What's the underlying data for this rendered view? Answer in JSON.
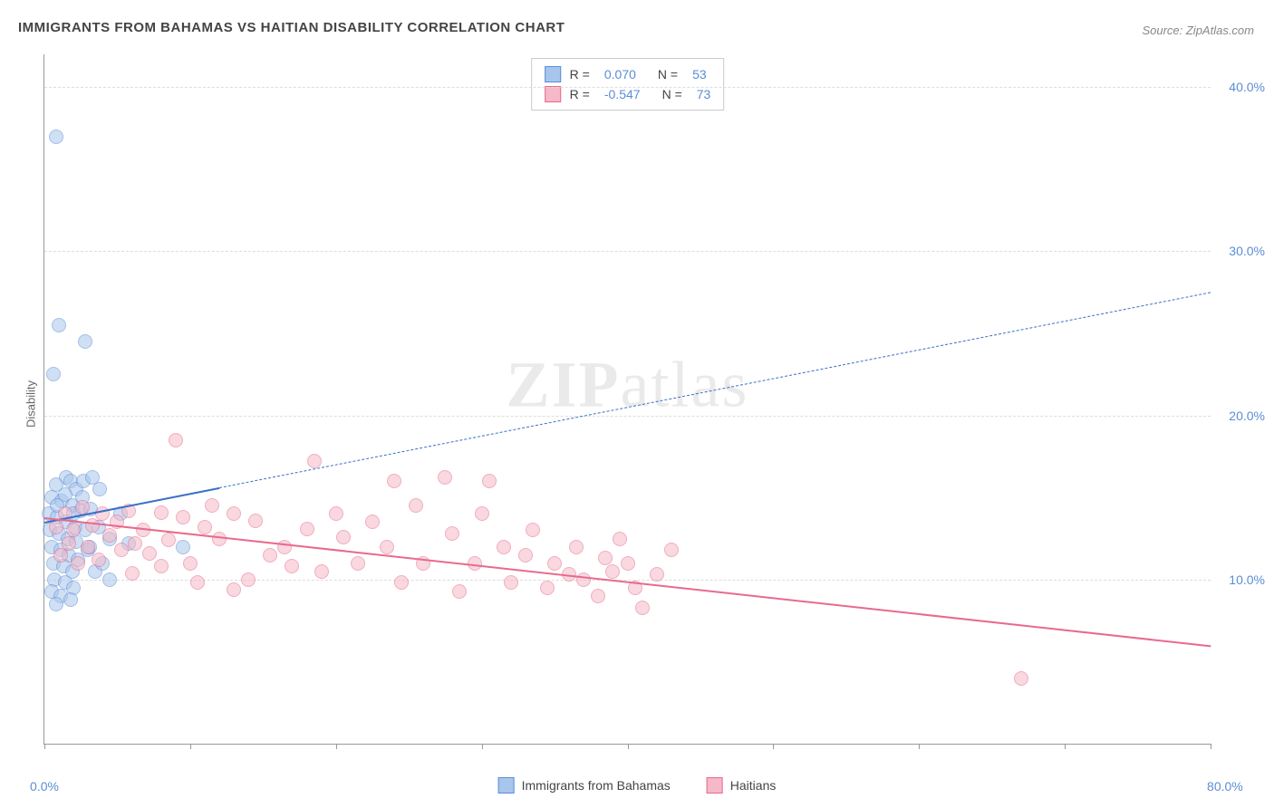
{
  "title": "IMMIGRANTS FROM BAHAMAS VS HAITIAN DISABILITY CORRELATION CHART",
  "source_label": "Source: ",
  "source_value": "ZipAtlas.com",
  "ylabel": "Disability",
  "watermark_bold": "ZIP",
  "watermark_light": "atlas",
  "chart": {
    "type": "scatter",
    "xlim": [
      0,
      80
    ],
    "ylim": [
      0,
      42
    ],
    "xtick_positions": [
      0,
      10,
      20,
      30,
      40,
      50,
      60,
      70,
      80
    ],
    "xtick_labels": {
      "0": "0.0%",
      "80": "80.0%"
    },
    "ytick_positions": [
      10,
      20,
      30,
      40
    ],
    "ytick_labels": [
      "10.0%",
      "20.0%",
      "30.0%",
      "40.0%"
    ],
    "grid_color": "#dddddd",
    "background_color": "#ffffff",
    "axis_color": "#999999",
    "marker_radius": 8,
    "marker_opacity": 0.55,
    "marker_border_width": 1.2
  },
  "series": [
    {
      "id": "bahamas",
      "label": "Immigrants from Bahamas",
      "color_fill": "#a8c6ec",
      "color_stroke": "#5b8dd6",
      "R": "0.070",
      "N": "53",
      "trend": {
        "x1": 0,
        "y1": 13.5,
        "x2": 80,
        "y2": 27.5,
        "solid_until_x": 12,
        "color": "#3b6fc7",
        "width": 2.5,
        "dash": "6,5"
      },
      "points": [
        [
          0.8,
          37.0
        ],
        [
          1.0,
          25.5
        ],
        [
          2.8,
          24.5
        ],
        [
          0.6,
          22.5
        ],
        [
          1.5,
          16.2
        ],
        [
          1.8,
          16.0
        ],
        [
          0.8,
          15.8
        ],
        [
          2.2,
          15.5
        ],
        [
          2.7,
          16.0
        ],
        [
          3.3,
          16.2
        ],
        [
          3.8,
          15.5
        ],
        [
          0.5,
          15.0
        ],
        [
          1.2,
          14.8
        ],
        [
          1.9,
          14.5
        ],
        [
          2.5,
          14.2
        ],
        [
          0.3,
          14.0
        ],
        [
          0.9,
          13.8
        ],
        [
          1.5,
          13.5
        ],
        [
          2.1,
          13.2
        ],
        [
          2.8,
          13.0
        ],
        [
          3.2,
          14.3
        ],
        [
          3.7,
          13.2
        ],
        [
          0.4,
          13.0
        ],
        [
          1.0,
          12.8
        ],
        [
          1.6,
          12.5
        ],
        [
          2.2,
          12.3
        ],
        [
          0.5,
          12.0
        ],
        [
          1.1,
          11.8
        ],
        [
          1.7,
          11.5
        ],
        [
          2.3,
          11.2
        ],
        [
          0.6,
          11.0
        ],
        [
          1.3,
          10.8
        ],
        [
          1.9,
          10.5
        ],
        [
          4.5,
          12.5
        ],
        [
          5.2,
          14.0
        ],
        [
          5.8,
          12.2
        ],
        [
          0.7,
          10.0
        ],
        [
          1.4,
          9.8
        ],
        [
          2.0,
          9.5
        ],
        [
          9.5,
          12.0
        ],
        [
          0.5,
          9.3
        ],
        [
          1.1,
          9.0
        ],
        [
          1.8,
          8.8
        ],
        [
          0.8,
          8.5
        ],
        [
          3.0,
          11.8
        ],
        [
          3.5,
          10.5
        ],
        [
          4.0,
          11.0
        ],
        [
          4.5,
          10.0
        ],
        [
          0.9,
          14.5
        ],
        [
          1.4,
          15.2
        ],
        [
          2.0,
          14.0
        ],
        [
          2.6,
          15.0
        ],
        [
          3.1,
          12.0
        ]
      ]
    },
    {
      "id": "haitians",
      "label": "Haitians",
      "color_fill": "#f5b9c7",
      "color_stroke": "#e86a8d",
      "R": "-0.547",
      "N": "73",
      "trend": {
        "x1": 0,
        "y1": 13.8,
        "x2": 80,
        "y2": 6.0,
        "solid_until_x": 80,
        "color": "#e86a8d",
        "width": 2.5
      },
      "points": [
        [
          9.0,
          18.5
        ],
        [
          18.5,
          17.2
        ],
        [
          24.0,
          16.0
        ],
        [
          27.5,
          16.2
        ],
        [
          25.5,
          14.5
        ],
        [
          20.0,
          14.0
        ],
        [
          22.5,
          13.5
        ],
        [
          20.5,
          12.6
        ],
        [
          23.5,
          12.0
        ],
        [
          21.5,
          11.0
        ],
        [
          18.0,
          13.1
        ],
        [
          16.5,
          12.0
        ],
        [
          14.5,
          13.6
        ],
        [
          15.5,
          11.5
        ],
        [
          13.0,
          9.4
        ],
        [
          13.0,
          14.0
        ],
        [
          12.0,
          12.5
        ],
        [
          11.0,
          13.2
        ],
        [
          10.0,
          11.0
        ],
        [
          9.5,
          13.8
        ],
        [
          8.5,
          12.4
        ],
        [
          8.0,
          14.1
        ],
        [
          7.2,
          11.6
        ],
        [
          6.8,
          13.0
        ],
        [
          6.2,
          12.2
        ],
        [
          5.8,
          14.2
        ],
        [
          5.3,
          11.8
        ],
        [
          5.0,
          13.5
        ],
        [
          4.5,
          12.7
        ],
        [
          4.0,
          14.0
        ],
        [
          3.7,
          11.2
        ],
        [
          3.3,
          13.3
        ],
        [
          3.0,
          12.0
        ],
        [
          2.6,
          14.4
        ],
        [
          2.3,
          11.0
        ],
        [
          2.0,
          13.0
        ],
        [
          1.7,
          12.2
        ],
        [
          1.4,
          14.0
        ],
        [
          1.1,
          11.5
        ],
        [
          0.8,
          13.2
        ],
        [
          28.0,
          12.8
        ],
        [
          29.5,
          11.0
        ],
        [
          30.0,
          14.0
        ],
        [
          30.5,
          16.0
        ],
        [
          31.5,
          12.0
        ],
        [
          33.0,
          11.5
        ],
        [
          34.5,
          9.5
        ],
        [
          36.5,
          12.0
        ],
        [
          37.0,
          10.0
        ],
        [
          38.0,
          9.0
        ],
        [
          39.0,
          10.5
        ],
        [
          39.5,
          12.5
        ],
        [
          40.0,
          11.0
        ],
        [
          42.0,
          10.3
        ],
        [
          43.0,
          11.8
        ],
        [
          32.0,
          9.8
        ],
        [
          33.5,
          13.0
        ],
        [
          35.0,
          11.0
        ],
        [
          28.5,
          9.3
        ],
        [
          26.0,
          11.0
        ],
        [
          24.5,
          9.8
        ],
        [
          19.0,
          10.5
        ],
        [
          17.0,
          10.8
        ],
        [
          14.0,
          10.0
        ],
        [
          10.5,
          9.8
        ],
        [
          36.0,
          10.3
        ],
        [
          38.5,
          11.3
        ],
        [
          40.5,
          9.5
        ],
        [
          41.0,
          8.3
        ],
        [
          67.0,
          4.0
        ],
        [
          6.0,
          10.4
        ],
        [
          8.0,
          10.8
        ],
        [
          11.5,
          14.5
        ]
      ]
    }
  ],
  "legend_stats": {
    "r_label": "R =",
    "n_label": "N ="
  }
}
